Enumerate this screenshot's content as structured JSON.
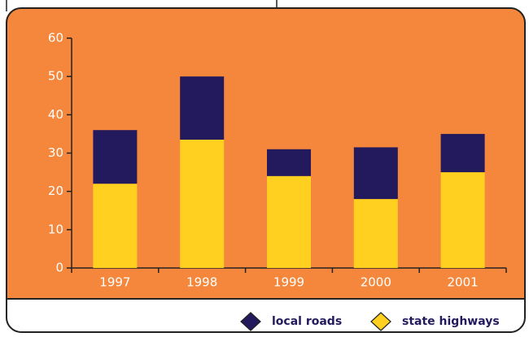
{
  "chart_data": {
    "type": "stacked_bar",
    "categories": [
      "1997",
      "1998",
      "1999",
      "2000",
      "2001"
    ],
    "series": [
      {
        "name": "local roads",
        "color": "#231a5e",
        "values": [
          14,
          16.5,
          7,
          13.5,
          10
        ]
      },
      {
        "name": "state highways",
        "color": "#ffd01f",
        "values": [
          22,
          33.5,
          24,
          18,
          25
        ]
      }
    ],
    "ylim": [
      0,
      60
    ],
    "yticks": [
      0,
      10,
      20,
      30,
      40,
      50,
      60
    ],
    "grid": false,
    "legend": "bottom-right"
  }
}
